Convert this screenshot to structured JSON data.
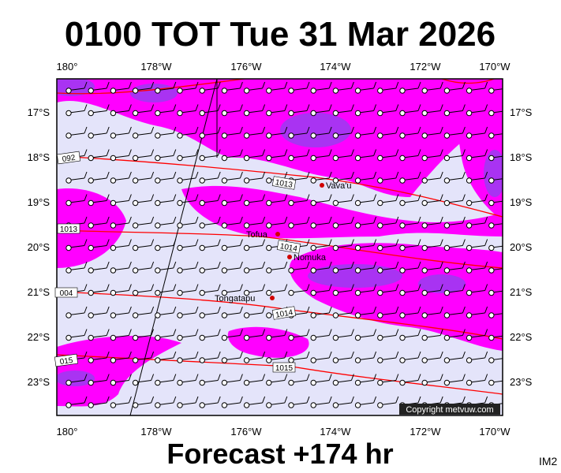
{
  "header": {
    "title": "0100 TOT Tue 31 Mar 2026"
  },
  "longitude_labels": [
    "180°",
    "178°W",
    "176°W",
    "174°W",
    "172°W",
    "170°W"
  ],
  "latitude_labels": [
    "17°S",
    "18°S",
    "19°S",
    "20°S",
    "21°S",
    "22°S",
    "23°S"
  ],
  "places": [
    "Vava'u",
    "Tofua",
    "Nomuka",
    "Tongatapu"
  ],
  "isobar_labels": [
    "092",
    "1013",
    "004",
    "015",
    "1013",
    "1014",
    "1014",
    "1015"
  ],
  "copyright": "Copyright metvuw.com",
  "footer": "Forecast +174 hr",
  "image_id": "IM2"
}
